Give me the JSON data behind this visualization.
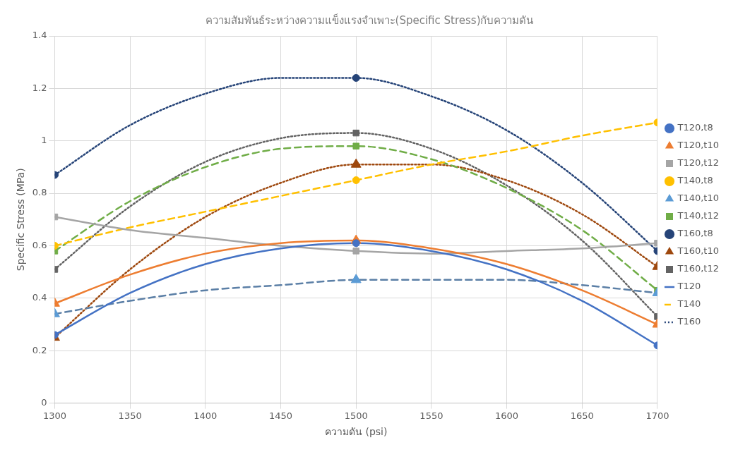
{
  "chart_data": {
    "type": "scatter",
    "title": "ความสัมพันธ์ระหว่างความแข็งแรงจำเพาะ(Specific Stress)กับความดัน",
    "xlabel": "ความดัน (psi)",
    "ylabel": "Specific Stress (MPa)",
    "xlim": [
      1300,
      1700
    ],
    "xticks": [
      1300,
      1350,
      1400,
      1450,
      1500,
      1550,
      1600,
      1650,
      1700
    ],
    "ylim": [
      0,
      1.4
    ],
    "yticks": [
      0,
      0.2,
      0.4,
      0.6,
      0.8,
      1,
      1.2,
      1.4
    ],
    "grid": true,
    "legend": "right",
    "x": [
      1300,
      1500,
      1700
    ],
    "series": [
      {
        "name": "T120,t8",
        "color": "#4472c4",
        "marker": "circle",
        "values": [
          0.26,
          0.61,
          0.22
        ]
      },
      {
        "name": "T120,t10",
        "color": "#ed7d31",
        "marker": "triangle",
        "values": [
          0.38,
          0.62,
          0.3
        ]
      },
      {
        "name": "T120,t12",
        "color": "#a5a5a5",
        "marker": "square",
        "values": [
          0.71,
          0.58,
          0.61
        ]
      },
      {
        "name": "T140,t8",
        "color": "#ffc000",
        "marker": "circle",
        "values": [
          0.6,
          0.85,
          1.07
        ]
      },
      {
        "name": "T140,t10",
        "color": "#5b9bd5",
        "marker": "triangle",
        "values": [
          0.34,
          0.47,
          0.42
        ]
      },
      {
        "name": "T140,t12",
        "color": "#70ad47",
        "marker": "square",
        "values": [
          0.58,
          0.98,
          0.43
        ]
      },
      {
        "name": "T160,t8",
        "color": "#264478",
        "marker": "circle",
        "values": [
          0.87,
          1.24,
          0.58
        ]
      },
      {
        "name": "T160,t10",
        "color": "#9e480e",
        "marker": "triangle",
        "values": [
          0.25,
          0.91,
          0.52
        ]
      },
      {
        "name": "T160,t12",
        "color": "#636363",
        "marker": "square",
        "values": [
          0.51,
          1.03,
          0.33
        ]
      },
      {
        "name": "T120",
        "type": "line",
        "color": "#4472c4",
        "line_style": "solid",
        "marker": "none",
        "x": [
          1300,
          1350,
          1400,
          1450,
          1500,
          1550,
          1600,
          1650,
          1700
        ],
        "values": [
          0.26,
          0.42,
          0.53,
          0.59,
          0.61,
          0.58,
          0.51,
          0.39,
          0.22
        ]
      },
      {
        "type": "line",
        "color": "#ed7d31",
        "line_style": "solid",
        "marker": "none",
        "x": [
          1300,
          1350,
          1400,
          1450,
          1500,
          1550,
          1600,
          1650,
          1700
        ],
        "values": [
          0.38,
          0.49,
          0.57,
          0.61,
          0.62,
          0.59,
          0.53,
          0.43,
          0.3
        ]
      },
      {
        "type": "line",
        "color": "#a5a5a5",
        "line_style": "solid",
        "marker": "none",
        "x": [
          1300,
          1350,
          1400,
          1450,
          1500,
          1550,
          1600,
          1650,
          1700
        ],
        "values": [
          0.71,
          0.66,
          0.63,
          0.6,
          0.58,
          0.57,
          0.58,
          0.59,
          0.61
        ]
      },
      {
        "name": "T140",
        "type": "line",
        "color": "#ffc000",
        "line_style": "dashed",
        "marker": "none",
        "x": [
          1300,
          1350,
          1400,
          1450,
          1500,
          1550,
          1600,
          1650,
          1700
        ],
        "values": [
          0.6,
          0.67,
          0.73,
          0.79,
          0.85,
          0.91,
          0.96,
          1.02,
          1.07
        ]
      },
      {
        "type": "line",
        "color": "#5b7fa6",
        "line_style": "dashed",
        "marker": "none",
        "x": [
          1300,
          1350,
          1400,
          1450,
          1500,
          1550,
          1600,
          1650,
          1700
        ],
        "values": [
          0.34,
          0.39,
          0.43,
          0.45,
          0.47,
          0.47,
          0.47,
          0.45,
          0.42
        ]
      },
      {
        "type": "line",
        "color": "#70ad47",
        "line_style": "dashed",
        "marker": "none",
        "x": [
          1300,
          1350,
          1400,
          1450,
          1500,
          1550,
          1600,
          1650,
          1700
        ],
        "values": [
          0.58,
          0.77,
          0.9,
          0.97,
          0.98,
          0.93,
          0.82,
          0.66,
          0.43
        ]
      },
      {
        "name": "T160",
        "type": "line",
        "color": "#264478",
        "line_style": "dotted",
        "marker": "none",
        "x": [
          1300,
          1350,
          1400,
          1450,
          1500,
          1550,
          1600,
          1650,
          1700
        ],
        "values": [
          0.87,
          1.06,
          1.18,
          1.24,
          1.24,
          1.17,
          1.04,
          0.84,
          0.58
        ]
      },
      {
        "type": "line",
        "color": "#9e480e",
        "line_style": "dotted",
        "marker": "none",
        "x": [
          1300,
          1350,
          1400,
          1450,
          1500,
          1550,
          1600,
          1650,
          1700
        ],
        "values": [
          0.25,
          0.51,
          0.71,
          0.84,
          0.91,
          0.91,
          0.85,
          0.72,
          0.52
        ]
      },
      {
        "type": "line",
        "color": "#636363",
        "line_style": "dotted",
        "marker": "none",
        "x": [
          1300,
          1350,
          1400,
          1450,
          1500,
          1550,
          1600,
          1650,
          1700
        ],
        "values": [
          0.51,
          0.75,
          0.92,
          1.01,
          1.03,
          0.97,
          0.83,
          0.62,
          0.33
        ]
      }
    ]
  }
}
